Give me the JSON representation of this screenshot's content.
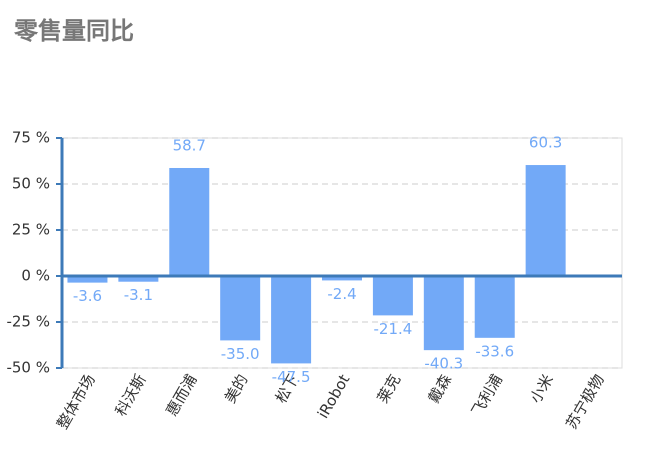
{
  "chart_data": {
    "type": "bar",
    "title": "零售量同比",
    "categories": [
      "整体市场",
      "科沃斯",
      "惠而浦",
      "美的",
      "松下",
      "iRobot",
      "莱克",
      "戴森",
      "飞利浦",
      "小米",
      "苏宁极物"
    ],
    "values": [
      -3.6,
      -3.1,
      58.7,
      -35.0,
      -47.5,
      -2.4,
      -21.4,
      -40.3,
      -33.6,
      60.3,
      null
    ],
    "value_labels": [
      "-3.6",
      "-3.1",
      "58.7",
      "-35.0",
      "-47.5",
      "-2.4",
      "-21.4",
      "-40.3",
      "-33.6",
      "60.3",
      null
    ],
    "color": "#72a9f7",
    "ylim": [
      -50,
      75
    ],
    "yticks": [
      {
        "value": -50,
        "label": "-50 %"
      },
      {
        "value": -25,
        "label": "-25 %"
      },
      {
        "value": 0,
        "label": "0 %"
      },
      {
        "value": 25,
        "label": "25 %"
      },
      {
        "value": 50,
        "label": "50 %"
      },
      {
        "value": 75,
        "label": "75 %"
      }
    ],
    "grid": true
  }
}
